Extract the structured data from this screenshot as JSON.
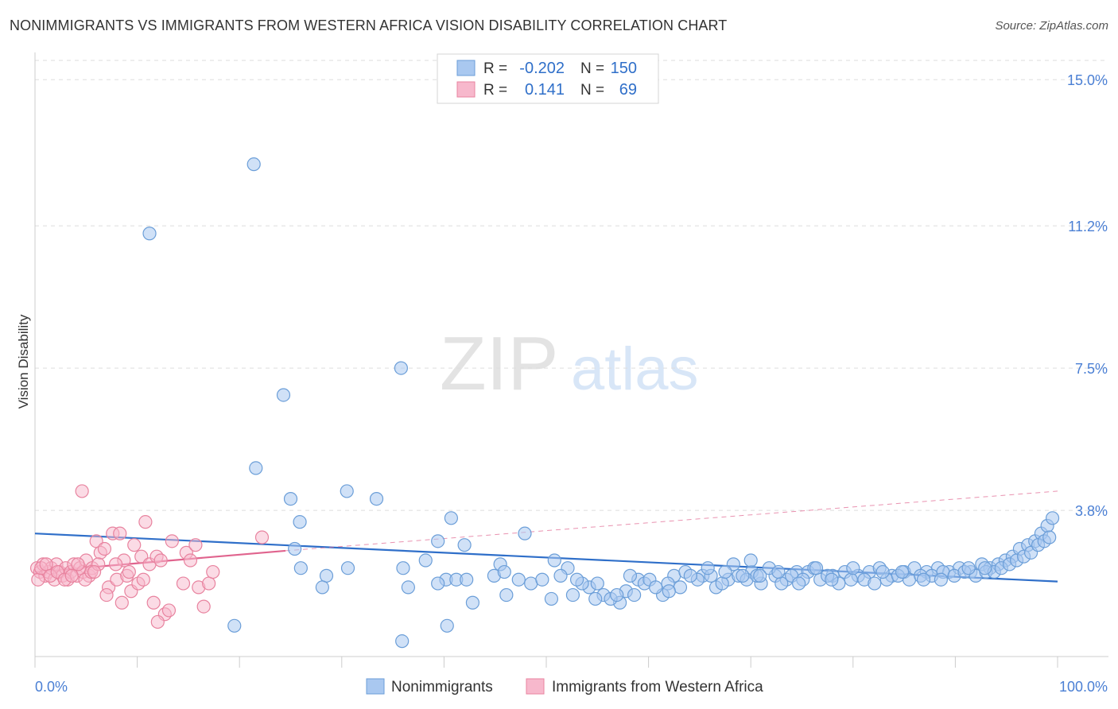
{
  "title": "NONIMMIGRANTS VS IMMIGRANTS FROM WESTERN AFRICA VISION DISABILITY CORRELATION CHART",
  "source": "Source: ZipAtlas.com",
  "watermark": {
    "zip": "ZIP",
    "atlas": "atlas"
  },
  "legend_top": [
    {
      "r_label": "R =",
      "r_value": "-0.202",
      "n_label": "N =",
      "n_value": "150"
    },
    {
      "r_label": "R =",
      "r_value": "0.141",
      "n_label": "N =",
      "n_value": "69"
    }
  ],
  "legend_bottom": [
    "Nonimmigrants",
    "Immigrants from Western Africa"
  ],
  "chart_data": {
    "type": "scatter",
    "ylabel": "Vision Disability",
    "xlim": [
      0,
      100
    ],
    "ylim": [
      0,
      15.5
    ],
    "x_tick_labels": [
      {
        "value": 0,
        "label": "0.0%"
      },
      {
        "value": 100,
        "label": "100.0%"
      }
    ],
    "y_tick_labels": [
      {
        "value": 3.8,
        "label": "3.8%"
      },
      {
        "value": 7.5,
        "label": "7.5%"
      },
      {
        "value": 11.2,
        "label": "11.2%"
      },
      {
        "value": 15.0,
        "label": "15.0%"
      }
    ],
    "grid": true,
    "legend_position": "top-center",
    "colors": {
      "blue_fill": "#a9c8f0",
      "blue_stroke": "#6b9ed8",
      "blue_line": "#2f6fc9",
      "pink_fill": "#f7b8cc",
      "pink_stroke": "#e8839f",
      "pink_line": "#e0648e",
      "tick_text": "#4a7fd4",
      "grid": "#dddddd"
    },
    "series": [
      {
        "name": "Nonimmigrants",
        "color": "#6b9ed8",
        "trend": {
          "x0": 0,
          "y0": 3.2,
          "x1": 100,
          "y1": 1.95
        },
        "points": [
          [
            21.4,
            12.8
          ],
          [
            11.2,
            11.0
          ],
          [
            35.8,
            7.5
          ],
          [
            24.3,
            6.8
          ],
          [
            21.6,
            4.9
          ],
          [
            30.5,
            4.3
          ],
          [
            33.4,
            4.1
          ],
          [
            25.0,
            4.1
          ],
          [
            40.7,
            3.6
          ],
          [
            25.9,
            3.5
          ],
          [
            47.9,
            3.2
          ],
          [
            39.4,
            3.0
          ],
          [
            42.0,
            2.9
          ],
          [
            25.4,
            2.8
          ],
          [
            38.2,
            2.5
          ],
          [
            45.5,
            2.4
          ],
          [
            26.0,
            2.3
          ],
          [
            30.6,
            2.3
          ],
          [
            36.0,
            2.3
          ],
          [
            47.3,
            2.0
          ],
          [
            28.5,
            2.1
          ],
          [
            28.1,
            1.8
          ],
          [
            40.2,
            2.0
          ],
          [
            41.2,
            2.0
          ],
          [
            44.9,
            2.1
          ],
          [
            45.9,
            2.2
          ],
          [
            42.2,
            2.0
          ],
          [
            39.4,
            1.9
          ],
          [
            36.5,
            1.8
          ],
          [
            46.1,
            1.6
          ],
          [
            50.5,
            1.5
          ],
          [
            52.6,
            1.6
          ],
          [
            54.2,
            1.8
          ],
          [
            55.6,
            1.6
          ],
          [
            57.2,
            1.4
          ],
          [
            57.8,
            1.7
          ],
          [
            59.0,
            2.0
          ],
          [
            59.6,
            1.9
          ],
          [
            61.4,
            1.6
          ],
          [
            62.5,
            2.1
          ],
          [
            63.6,
            2.2
          ],
          [
            65.3,
            2.1
          ],
          [
            66.6,
            1.8
          ],
          [
            67.8,
            2.0
          ],
          [
            68.8,
            2.1
          ],
          [
            70.1,
            2.2
          ],
          [
            71.0,
            1.9
          ],
          [
            72.4,
            2.1
          ],
          [
            73.5,
            2.0
          ],
          [
            74.5,
            2.2
          ],
          [
            75.6,
            2.2
          ],
          [
            76.8,
            2.0
          ],
          [
            78.0,
            2.1
          ],
          [
            79.2,
            2.2
          ],
          [
            80.5,
            2.1
          ],
          [
            81.6,
            2.2
          ],
          [
            82.6,
            2.3
          ],
          [
            83.8,
            2.1
          ],
          [
            85.0,
            2.2
          ],
          [
            86.0,
            2.3
          ],
          [
            87.2,
            2.2
          ],
          [
            88.3,
            2.3
          ],
          [
            89.4,
            2.2
          ],
          [
            90.4,
            2.3
          ],
          [
            91.5,
            2.2
          ],
          [
            92.6,
            2.4
          ],
          [
            93.4,
            2.3
          ],
          [
            94.2,
            2.4
          ],
          [
            94.9,
            2.5
          ],
          [
            95.6,
            2.6
          ],
          [
            96.3,
            2.8
          ],
          [
            97.1,
            2.9
          ],
          [
            97.8,
            3.0
          ],
          [
            98.4,
            3.2
          ],
          [
            99.0,
            3.4
          ],
          [
            99.5,
            3.6
          ],
          [
            50.8,
            2.5
          ],
          [
            52.1,
            2.3
          ],
          [
            53.5,
            1.9
          ],
          [
            55.0,
            1.9
          ],
          [
            56.3,
            1.5
          ],
          [
            58.6,
            1.6
          ],
          [
            60.1,
            2.0
          ],
          [
            61.9,
            1.9
          ],
          [
            63.1,
            1.8
          ],
          [
            64.8,
            2.0
          ],
          [
            66.1,
            2.1
          ],
          [
            67.2,
            1.9
          ],
          [
            68.3,
            2.4
          ],
          [
            69.6,
            2.0
          ],
          [
            70.6,
            2.1
          ],
          [
            71.8,
            2.3
          ],
          [
            73.0,
            1.9
          ],
          [
            74.0,
            2.1
          ],
          [
            75.1,
            2.0
          ],
          [
            76.2,
            2.3
          ],
          [
            77.5,
            2.1
          ],
          [
            78.6,
            1.9
          ],
          [
            79.8,
            2.0
          ],
          [
            81.1,
            2.0
          ],
          [
            82.1,
            1.9
          ],
          [
            83.3,
            2.0
          ],
          [
            84.4,
            2.1
          ],
          [
            85.5,
            2.0
          ],
          [
            86.6,
            2.1
          ],
          [
            87.7,
            2.1
          ],
          [
            88.8,
            2.2
          ],
          [
            89.9,
            2.1
          ],
          [
            90.9,
            2.2
          ],
          [
            92.0,
            2.1
          ],
          [
            93.0,
            2.2
          ],
          [
            93.8,
            2.2
          ],
          [
            94.5,
            2.3
          ],
          [
            95.3,
            2.4
          ],
          [
            96.0,
            2.5
          ],
          [
            96.7,
            2.6
          ],
          [
            97.4,
            2.7
          ],
          [
            98.1,
            2.9
          ],
          [
            98.7,
            3.0
          ],
          [
            99.2,
            3.1
          ],
          [
            48.5,
            1.9
          ],
          [
            49.6,
            2.0
          ],
          [
            51.4,
            2.1
          ],
          [
            53.0,
            2.0
          ],
          [
            54.8,
            1.5
          ],
          [
            56.9,
            1.6
          ],
          [
            58.2,
            2.1
          ],
          [
            60.7,
            1.8
          ],
          [
            62.0,
            1.7
          ],
          [
            64.1,
            2.1
          ],
          [
            65.8,
            2.3
          ],
          [
            67.5,
            2.2
          ],
          [
            69.2,
            2.1
          ],
          [
            70.9,
            2.1
          ],
          [
            72.7,
            2.2
          ],
          [
            74.7,
            1.9
          ],
          [
            76.4,
            2.3
          ],
          [
            77.9,
            2.0
          ],
          [
            80.0,
            2.3
          ],
          [
            82.9,
            2.2
          ],
          [
            84.8,
            2.2
          ],
          [
            86.9,
            2.0
          ],
          [
            88.6,
            2.0
          ],
          [
            91.3,
            2.3
          ],
          [
            92.9,
            2.3
          ],
          [
            19.5,
            0.8
          ],
          [
            40.3,
            0.8
          ],
          [
            35.9,
            0.4
          ],
          [
            42.8,
            1.4
          ],
          [
            70.0,
            2.5
          ]
        ]
      },
      {
        "name": "Immigrants from Western Africa",
        "color": "#e8839f",
        "trend": {
          "x0": 0,
          "y0": 2.2,
          "x1": 24.5,
          "y1": 2.75,
          "dash_to_x": 100,
          "dash_to_y": 4.3
        },
        "points": [
          [
            0.2,
            2.3
          ],
          [
            0.5,
            2.2
          ],
          [
            0.8,
            2.4
          ],
          [
            1.0,
            2.1
          ],
          [
            1.3,
            2.2
          ],
          [
            1.6,
            2.3
          ],
          [
            1.9,
            2.0
          ],
          [
            2.1,
            2.4
          ],
          [
            2.4,
            2.2
          ],
          [
            2.7,
            2.1
          ],
          [
            3.0,
            2.3
          ],
          [
            3.2,
            2.0
          ],
          [
            3.5,
            2.2
          ],
          [
            3.8,
            2.4
          ],
          [
            4.1,
            2.1
          ],
          [
            4.4,
            2.3
          ],
          [
            4.7,
            2.2
          ],
          [
            5.0,
            2.5
          ],
          [
            5.3,
            2.1
          ],
          [
            5.6,
            2.3
          ],
          [
            0.3,
            2.0
          ],
          [
            0.6,
            2.3
          ],
          [
            1.1,
            2.4
          ],
          [
            1.5,
            2.1
          ],
          [
            2.2,
            2.2
          ],
          [
            2.9,
            2.0
          ],
          [
            3.6,
            2.1
          ],
          [
            4.2,
            2.4
          ],
          [
            4.9,
            2.0
          ],
          [
            5.5,
            2.2
          ],
          [
            6.0,
            3.0
          ],
          [
            6.4,
            2.7
          ],
          [
            6.8,
            2.8
          ],
          [
            7.2,
            1.8
          ],
          [
            7.6,
            3.2
          ],
          [
            8.0,
            2.0
          ],
          [
            8.3,
            3.2
          ],
          [
            8.7,
            2.5
          ],
          [
            9.0,
            2.1
          ],
          [
            9.4,
            1.7
          ],
          [
            9.7,
            2.9
          ],
          [
            10.1,
            1.9
          ],
          [
            10.4,
            2.6
          ],
          [
            10.8,
            3.5
          ],
          [
            11.2,
            2.4
          ],
          [
            11.6,
            1.4
          ],
          [
            11.9,
            2.6
          ],
          [
            12.3,
            2.5
          ],
          [
            12.7,
            1.1
          ],
          [
            13.1,
            1.2
          ],
          [
            14.8,
            2.7
          ],
          [
            15.2,
            2.5
          ],
          [
            15.7,
            2.9
          ],
          [
            16.0,
            1.8
          ],
          [
            16.5,
            1.3
          ],
          [
            17.0,
            1.9
          ],
          [
            17.4,
            2.2
          ],
          [
            13.4,
            3.0
          ],
          [
            14.5,
            1.9
          ],
          [
            12.0,
            0.9
          ],
          [
            10.6,
            2.0
          ],
          [
            9.2,
            2.2
          ],
          [
            8.5,
            1.4
          ],
          [
            7.9,
            2.4
          ],
          [
            7.0,
            1.6
          ],
          [
            6.2,
            2.4
          ],
          [
            5.8,
            2.2
          ],
          [
            4.6,
            4.3
          ],
          [
            22.2,
            3.1
          ]
        ]
      }
    ]
  }
}
